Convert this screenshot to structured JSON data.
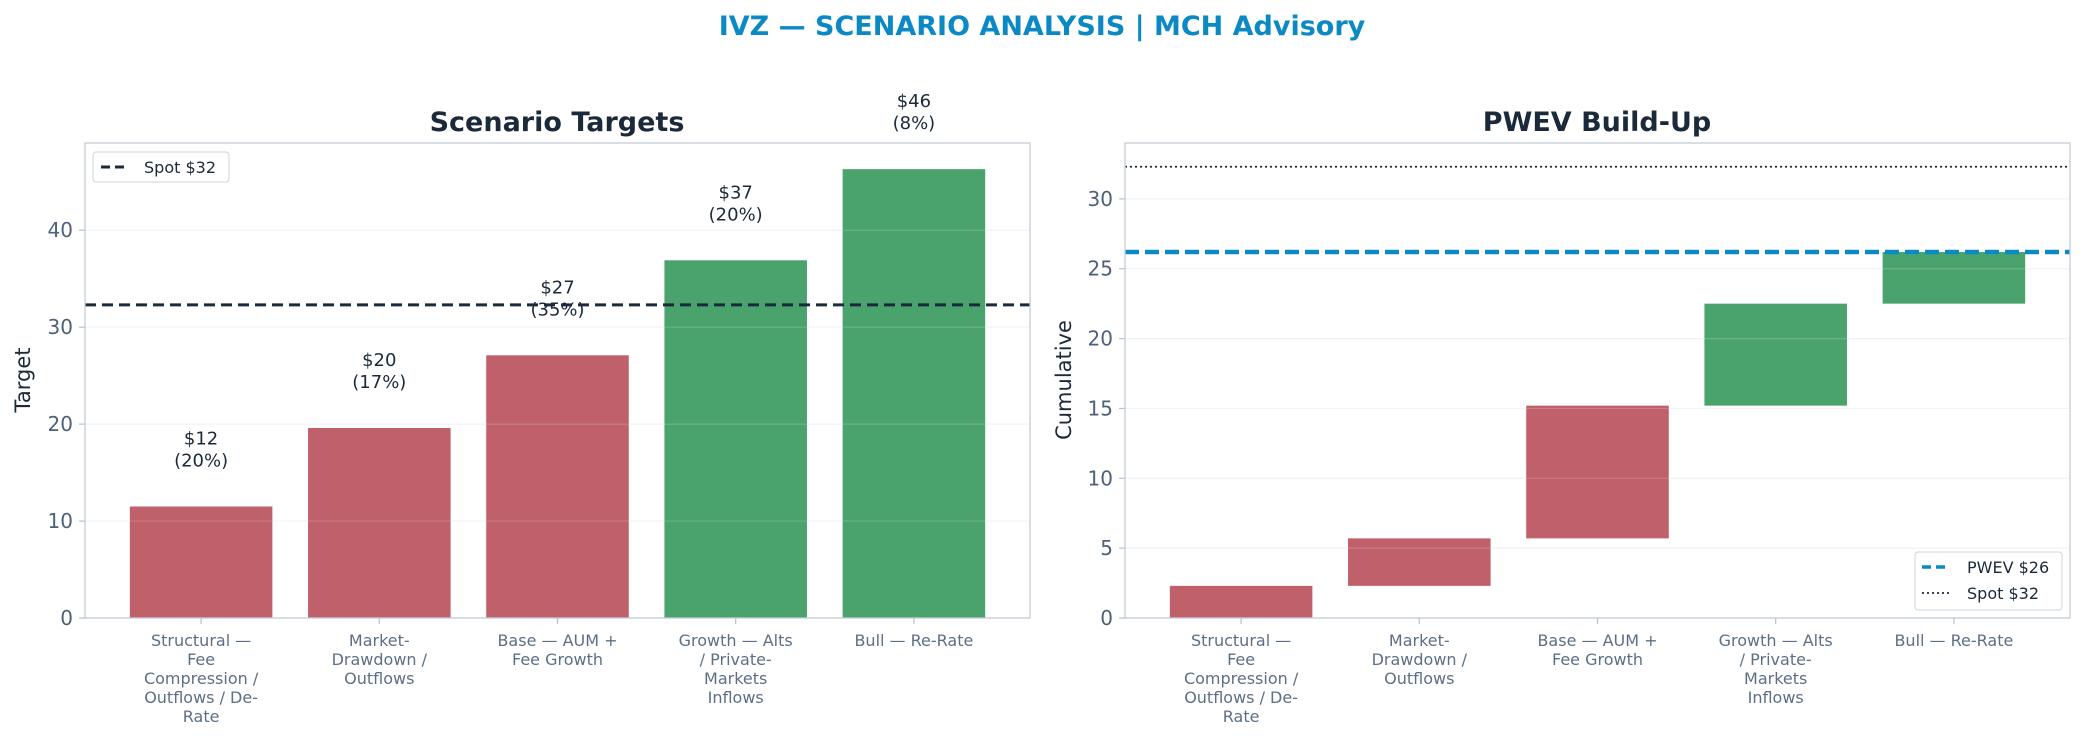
{
  "suptitle": "IVZ — SCENARIO ANALYSIS | MCH Advisory",
  "colors": {
    "bear": "#c0606a",
    "bull": "#4aa36d",
    "pwev": "#0a89c4",
    "spot": "#1b2a3a",
    "title": "#0a89c4"
  },
  "chart_data": [
    {
      "type": "bar",
      "title": "Scenario Targets",
      "xlabel": "",
      "ylabel": "Target",
      "ylim": [
        0,
        49
      ],
      "yticks": [
        0,
        10,
        20,
        30,
        40
      ],
      "grid": true,
      "legend_position": "top-left",
      "categories": [
        "Structural — Fee Compression / Outflows / De-Rate",
        "Market-Drawdown / Outflows",
        "Base — AUM + Fee Growth",
        "Growth — Alts / Private-Markets Inflows",
        "Bull — Re-Rate"
      ],
      "category_lines": [
        [
          "Structural —",
          "Fee",
          "Compression /",
          "Outflows / De-",
          "Rate"
        ],
        [
          "Market-",
          "Drawdown /",
          "Outflows"
        ],
        [
          "Base — AUM +",
          "Fee Growth"
        ],
        [
          "Growth — Alts",
          "/ Private-",
          "Markets",
          "Inflows"
        ],
        [
          "Bull — Re-Rate"
        ]
      ],
      "values": [
        11.5,
        19.6,
        27.1,
        36.9,
        46.3
      ],
      "data_labels": [
        [
          "$12",
          "(20%)"
        ],
        [
          "$20",
          "(17%)"
        ],
        [
          "$27",
          "(35%)"
        ],
        [
          "$37",
          "(20%)"
        ],
        [
          "$46",
          "(8%)"
        ]
      ],
      "bar_colors": [
        "bear",
        "bear",
        "bear",
        "bull",
        "bull"
      ],
      "reference_lines": [
        {
          "value": 32.3,
          "label": "Spot $32",
          "style": "dashed",
          "color": "spot"
        }
      ]
    },
    {
      "type": "waterfall",
      "title": "PWEV Build-Up",
      "xlabel": "",
      "ylabel": "Cumulative",
      "ylim": [
        0,
        34
      ],
      "yticks": [
        0,
        5,
        10,
        15,
        20,
        25,
        30
      ],
      "grid": true,
      "legend_position": "bottom-right",
      "categories": [
        "Structural — Fee Compression / Outflows / De-Rate",
        "Market-Drawdown / Outflows",
        "Base — AUM + Fee Growth",
        "Growth — Alts / Private-Markets Inflows",
        "Bull — Re-Rate"
      ],
      "category_lines": [
        [
          "Structural —",
          "Fee",
          "Compression /",
          "Outflows / De-",
          "Rate"
        ],
        [
          "Market-",
          "Drawdown /",
          "Outflows"
        ],
        [
          "Base — AUM +",
          "Fee Growth"
        ],
        [
          "Growth — Alts",
          "/ Private-",
          "Markets",
          "Inflows"
        ],
        [
          "Bull — Re-Rate"
        ]
      ],
      "bars": [
        {
          "start": 0.0,
          "end": 2.3
        },
        {
          "start": 2.3,
          "end": 5.7
        },
        {
          "start": 5.7,
          "end": 15.2
        },
        {
          "start": 15.2,
          "end": 22.5
        },
        {
          "start": 22.5,
          "end": 26.2
        }
      ],
      "bar_colors": [
        "bear",
        "bear",
        "bear",
        "bull",
        "bull"
      ],
      "reference_lines": [
        {
          "value": 26.2,
          "label": "PWEV $26",
          "style": "dashed",
          "color": "pwev"
        },
        {
          "value": 32.3,
          "label": "Spot $32",
          "style": "dotted",
          "color": "spot"
        }
      ]
    }
  ]
}
